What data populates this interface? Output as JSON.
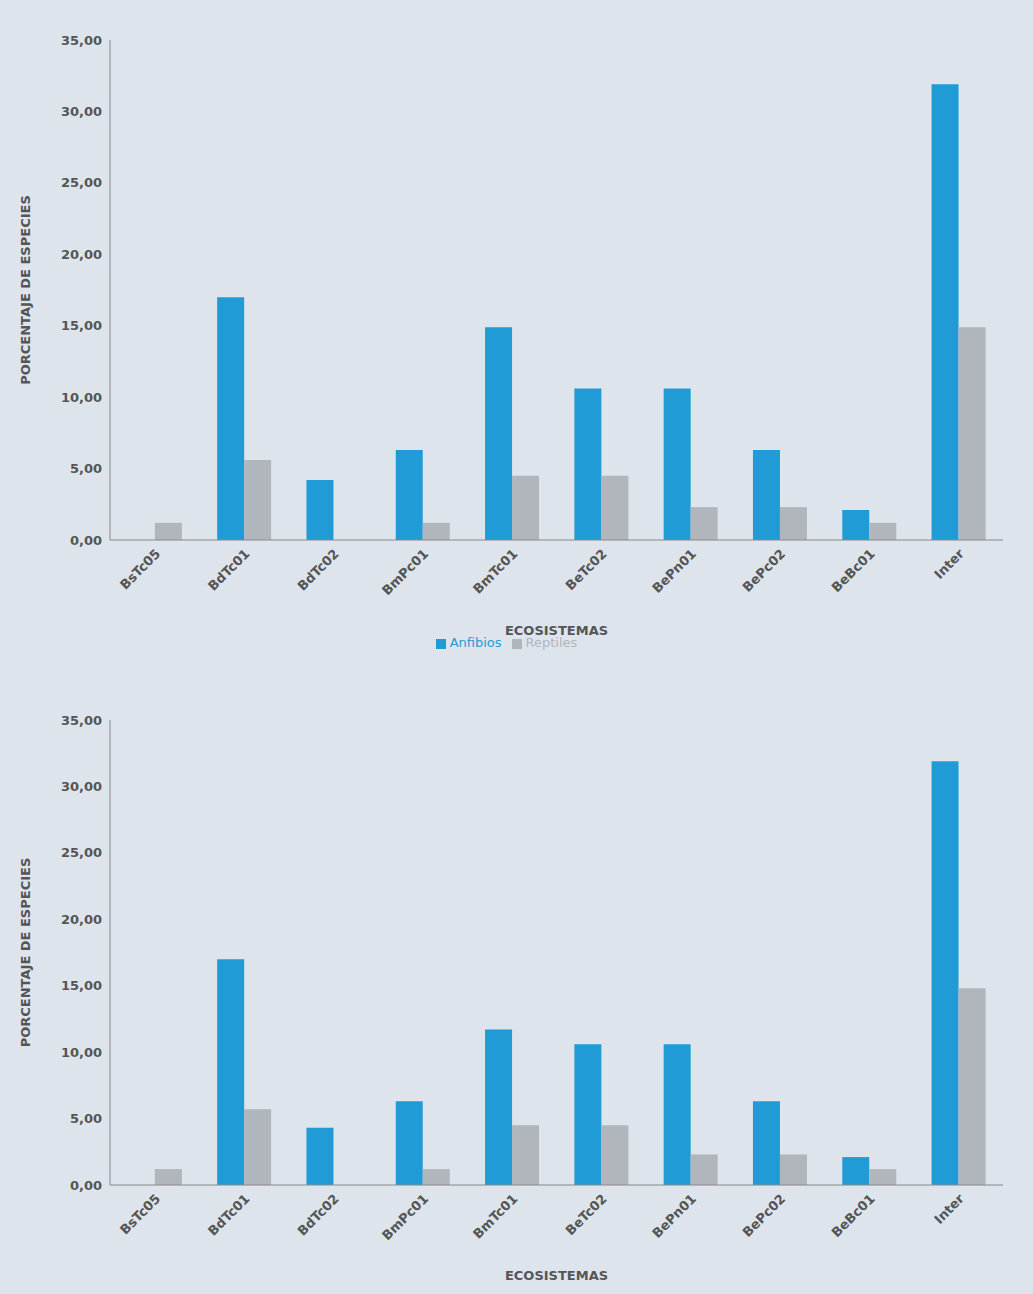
{
  "chart_data": [
    {
      "type": "bar",
      "x_label": "ECOSISTEMAS",
      "y_label": "PORCENTAJE DE ESPECIES",
      "categories": [
        "BsTc05",
        "BdTc01",
        "BdTc02",
        "BmPc01",
        "BmTc01",
        "BeTc02",
        "BePn01",
        "BePc02",
        "BeBc01",
        "Inter"
      ],
      "series": [
        {
          "name": "Anfibios",
          "color": "#219bd5",
          "values": [
            0,
            17.0,
            4.2,
            6.3,
            14.9,
            10.6,
            10.6,
            6.3,
            2.1,
            31.9
          ]
        },
        {
          "name": "Reptiles",
          "color": "#b1b6bd",
          "values": [
            1.2,
            5.6,
            0,
            1.2,
            4.5,
            4.5,
            2.3,
            2.3,
            1.2,
            14.9
          ]
        }
      ],
      "ylim": [
        0,
        35
      ],
      "yticks": [
        {
          "value": 0,
          "label": "0,00"
        },
        {
          "value": 5,
          "label": "5,00"
        },
        {
          "value": 10,
          "label": "10,00"
        },
        {
          "value": 15,
          "label": "15,00"
        },
        {
          "value": 20,
          "label": "20,00"
        },
        {
          "value": 25,
          "label": "25,00"
        },
        {
          "value": 30,
          "label": "30,00"
        },
        {
          "value": 35,
          "label": "35,00"
        }
      ],
      "legend": "bottom"
    },
    {
      "type": "bar",
      "x_label": "ECOSISTEMAS",
      "y_label": "PORCENTAJE DE ESPECIES",
      "categories": [
        "BsTc05",
        "BdTc01",
        "BdTc02",
        "BmPc01",
        "BmTc01",
        "BeTc02",
        "BePn01",
        "BePc02",
        "BeBc01",
        "Inter"
      ],
      "series": [
        {
          "name": "Anfibios",
          "color": "#219bd5",
          "values": [
            0,
            17.0,
            4.3,
            6.3,
            11.7,
            10.6,
            10.6,
            6.3,
            2.1,
            31.9
          ]
        },
        {
          "name": "Reptiles",
          "color": "#b1b6bd",
          "values": [
            1.2,
            5.7,
            0,
            1.2,
            4.5,
            4.5,
            2.3,
            2.3,
            1.2,
            14.8
          ]
        }
      ],
      "ylim": [
        0,
        35
      ],
      "yticks": [
        {
          "value": 0,
          "label": "0,00"
        },
        {
          "value": 5,
          "label": "5,00"
        },
        {
          "value": 10,
          "label": "10,00"
        },
        {
          "value": 15,
          "label": "15,00"
        },
        {
          "value": 20,
          "label": "20,00"
        },
        {
          "value": 25,
          "label": "25,00"
        },
        {
          "value": 30,
          "label": "30,00"
        },
        {
          "value": 35,
          "label": "35,00"
        }
      ]
    }
  ]
}
